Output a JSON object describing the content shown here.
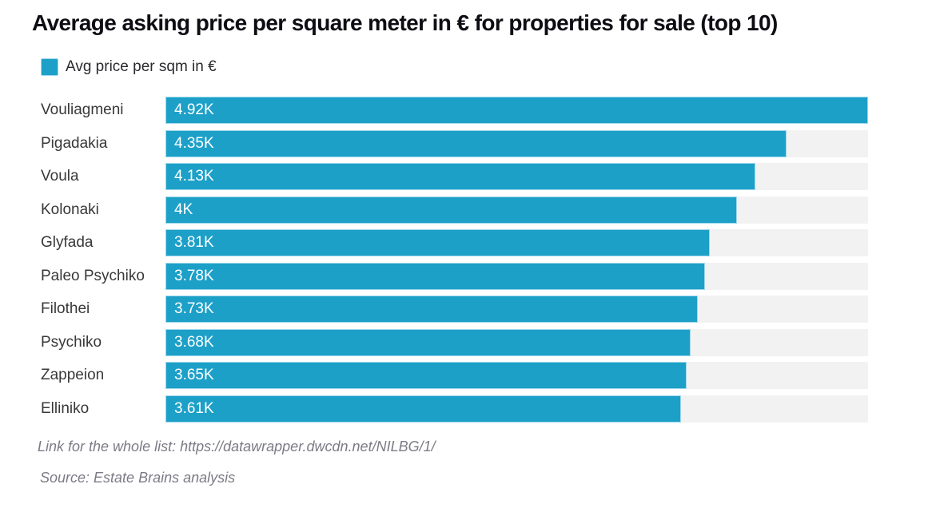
{
  "title": "Average asking price per square meter in € for properties for sale (top 10)",
  "legend": {
    "label": "Avg price per sqm in €"
  },
  "chart_data": {
    "type": "bar",
    "orientation": "horizontal",
    "title": "Average asking price per square meter in € for properties for sale (top 10)",
    "series_name": "Avg price per sqm in €",
    "categories": [
      "Vouliagmeni",
      "Pigadakia",
      "Voula",
      "Kolonaki",
      "Glyfada",
      "Paleo Psychiko",
      "Filothei",
      "Psychiko",
      "Zappeion",
      "Elliniko"
    ],
    "values": [
      4920,
      4350,
      4130,
      4000,
      3810,
      3780,
      3730,
      3680,
      3650,
      3610
    ],
    "value_labels": [
      "4.92K",
      "4.35K",
      "4.13K",
      "4K",
      "3.81K",
      "3.78K",
      "3.73K",
      "3.68K",
      "3.65K",
      "3.61K"
    ],
    "unit": "€ per sqm",
    "xlim": [
      0,
      4920
    ],
    "grid": false,
    "legend_position": "top-left"
  },
  "footer": {
    "link_prefix": "Link for the whole list: ",
    "link_url": "https://datawrapper.dwcdn.net/NILBG/1/",
    "source_line": "Source: Estate Brains analysis"
  },
  "colors": {
    "bar": "#1CA0C8",
    "bar_border": "#9FD7EB",
    "track": "#F2F2F2",
    "title_text": "#0D0D13",
    "category_text": "#383838",
    "value_text": "#FFFFFF",
    "footer_text": "#7B7B86"
  }
}
